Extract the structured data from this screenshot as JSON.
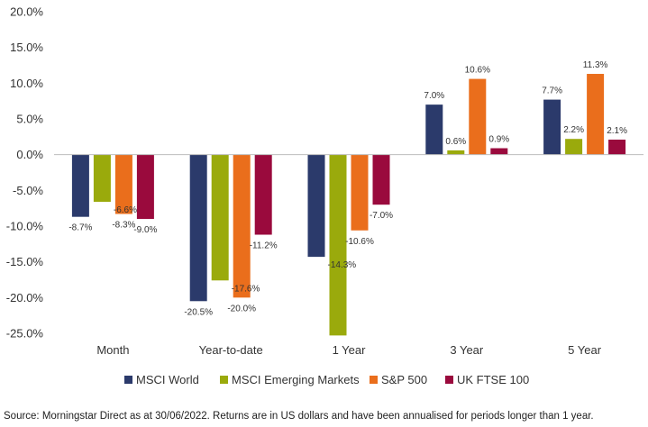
{
  "chart_data": {
    "type": "bar",
    "categories": [
      "Month",
      "Year-to-date",
      "1 Year",
      "3 Year",
      "5 Year"
    ],
    "series": [
      {
        "name": "MSCI World",
        "color": "#2b3a6b",
        "values": [
          -8.7,
          -20.5,
          -14.3,
          7.0,
          7.7
        ]
      },
      {
        "name": "MSCI Emerging Markets",
        "color": "#9aaa0c",
        "values": [
          -6.6,
          -17.6,
          -25.3,
          0.6,
          2.2
        ]
      },
      {
        "name": "S&P 500",
        "color": "#ea6e1c",
        "values": [
          -8.3,
          -20.0,
          -10.6,
          10.6,
          11.3
        ]
      },
      {
        "name": "UK FTSE 100",
        "color": "#9a0a3d",
        "values": [
          -9.0,
          -11.2,
          -7.0,
          0.9,
          2.1
        ]
      }
    ],
    "data_labels": [
      [
        "-8.7%",
        "-20.5%",
        "-14.3%",
        "7.0%",
        "7.7%"
      ],
      [
        "-6.6%",
        "-17.6%",
        "",
        "0.6%",
        "2.2%"
      ],
      [
        "-8.3%",
        "-20.0%",
        "-10.6%",
        "10.6%",
        "11.3%"
      ],
      [
        "-9.0%",
        "-11.2%",
        "-7.0%",
        "0.9%",
        "2.1%"
      ]
    ],
    "y_ticks": [
      "20.0%",
      "15.0%",
      "10.0%",
      "5.0%",
      "0.0%",
      "-5.0%",
      "-10.0%",
      "-15.0%",
      "-20.0%",
      "-25.0%"
    ],
    "ylim": [
      -25,
      20
    ],
    "title": "",
    "xlabel": "",
    "ylabel": "",
    "grid": false,
    "legend": "bottom"
  },
  "source": "Source: Morningstar Direct as at 30/06/2022. Returns are in US dollars and have been annualised for periods longer than 1 year."
}
